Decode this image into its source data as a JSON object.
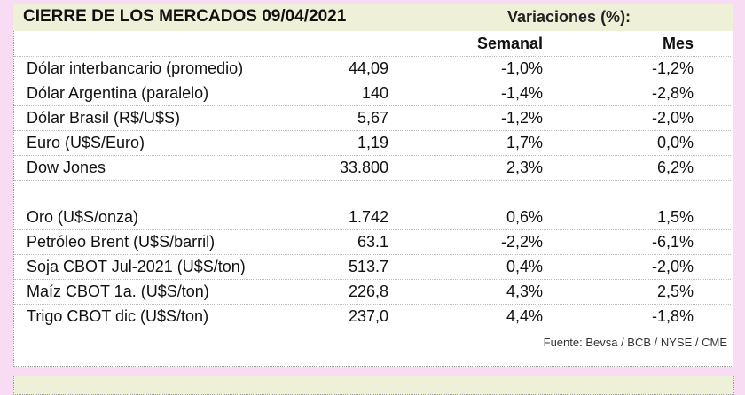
{
  "header": {
    "title": "CIERRE DE LOS MERCADOS 09/04/2021",
    "variations": "Variaciones (%):"
  },
  "columns": [
    "Semanal",
    "Mes"
  ],
  "groups": [
    [
      [
        "Dólar interbancario (promedio)",
        "44,09",
        "-1,0%",
        "-1,2%"
      ],
      [
        "Dólar Argentina (paralelo)",
        "140",
        "-1,4%",
        "-2,8%"
      ],
      [
        "Dólar Brasil (R$/U$S)",
        "5,67",
        "-1,2%",
        "-2,0%"
      ],
      [
        "Euro (U$S/Euro)",
        "1,19",
        "1,7%",
        "0,0%"
      ],
      [
        "Dow Jones",
        "33.800",
        "2,3%",
        "6,2%"
      ]
    ],
    [
      [
        "Oro (U$S/onza)",
        "1.742",
        "0,6%",
        "1,5%"
      ],
      [
        "Petróleo Brent (U$S/barril)",
        "63.1",
        "-2,2%",
        "-6,1%"
      ],
      [
        "Soja CBOT Jul-2021 (U$S/ton)",
        "513.7",
        "0,4%",
        "-2,0%"
      ],
      [
        "Maíz CBOT 1a. (U$S/ton)",
        "226,8",
        "4,3%",
        "2,5%"
      ],
      [
        "Trigo CBOT dic (U$S/ton)",
        "237,0",
        "4,4%",
        "-1,8%"
      ]
    ]
  ],
  "source": "Fuente: Bevsa / BCB / NYSE / CME"
}
